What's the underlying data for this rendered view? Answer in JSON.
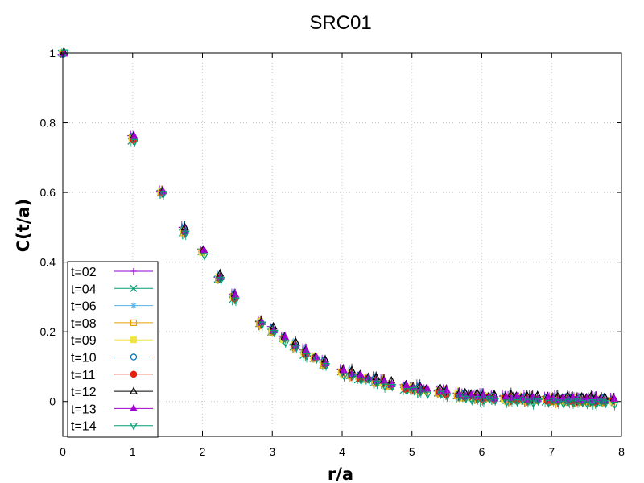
{
  "chart_data": {
    "type": "scatter",
    "title": "SRC01",
    "xlabel": "r/a",
    "ylabel": "C(t/a)",
    "xlim": [
      0,
      8
    ],
    "ylim": [
      -0.1,
      1
    ],
    "x_ticks": [
      "0",
      "1",
      "2",
      "3",
      "4",
      "5",
      "6",
      "7",
      "8"
    ],
    "y_ticks": [
      "0",
      "0.2",
      "0.4",
      "0.6",
      "0.8",
      "1"
    ],
    "grid": true,
    "legend_position": "bottom-left",
    "x": [
      0,
      1,
      1.414,
      1.732,
      2,
      2.236,
      2.449,
      2.828,
      3,
      3.162,
      3.317,
      3.464,
      3.606,
      3.742,
      4,
      4.123,
      4.243,
      4.359,
      4.472,
      4.583,
      4.69,
      4.899,
      5,
      5.099,
      5.196,
      5.385,
      5.477,
      5.657,
      5.745,
      5.831,
      5.916,
      6,
      6.083,
      6.164,
      6.325,
      6.403,
      6.481,
      6.557,
      6.633,
      6.708,
      6.782,
      6.928,
      7,
      7.071,
      7.141,
      7.211,
      7.28,
      7.348,
      7.416,
      7.483,
      7.55,
      7.616,
      7.681,
      7.746,
      7.874
    ],
    "base_values": [
      1,
      0.755,
      0.6,
      0.49,
      0.43,
      0.355,
      0.3,
      0.225,
      0.205,
      0.18,
      0.16,
      0.14,
      0.125,
      0.11,
      0.085,
      0.078,
      0.07,
      0.065,
      0.06,
      0.055,
      0.048,
      0.04,
      0.037,
      0.035,
      0.032,
      0.028,
      0.025,
      0.018,
      0.016,
      0.015,
      0.013,
      0.012,
      0.011,
      0.01,
      0.009,
      0.009,
      0.008,
      0.008,
      0.007,
      0.007,
      0.006,
      0.006,
      0.006,
      0.005,
      0.005,
      0.005,
      0.005,
      0.004,
      0.004,
      0.004,
      0.004,
      0.003,
      0.003,
      0.003,
      0.003
    ],
    "series": [
      {
        "name": "t=02",
        "color": "#9400d3",
        "marker": "plus",
        "offset": 0.006
      },
      {
        "name": "t=04",
        "color": "#009e73",
        "marker": "cross",
        "offset": -0.004
      },
      {
        "name": "t=06",
        "color": "#56b4e9",
        "marker": "star",
        "offset": 0.002
      },
      {
        "name": "t=08",
        "color": "#e69f00",
        "marker": "square-open",
        "offset": -0.002
      },
      {
        "name": "t=09",
        "color": "#f0e442",
        "marker": "square-filled",
        "offset": 0.001
      },
      {
        "name": "t=10",
        "color": "#0072b2",
        "marker": "circle-open",
        "offset": 0.004
      },
      {
        "name": "t=11",
        "color": "#e51e10",
        "marker": "circle-filled",
        "offset": -0.001
      },
      {
        "name": "t=12",
        "color": "#000000",
        "marker": "triangle-open",
        "offset": 0.008
      },
      {
        "name": "t=13",
        "color": "#a000d0",
        "marker": "triangle-filled",
        "offset": 0.003
      },
      {
        "name": "t=14",
        "color": "#009e73",
        "marker": "triangle-down-open",
        "offset": -0.008
      }
    ]
  }
}
